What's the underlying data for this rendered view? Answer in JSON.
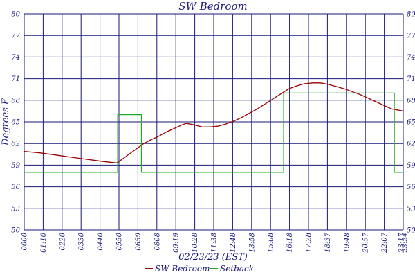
{
  "chart_data": {
    "type": "line",
    "title": "SW Bedroom",
    "xlabel": "02/23/23 (EST)",
    "ylabel": "Degrees F",
    "ylim": [
      50,
      80
    ],
    "xlim": [
      "00:00",
      "23:59"
    ],
    "y_ticks_left": [
      "50",
      "53",
      "56",
      "59",
      "62",
      "65",
      "68",
      "71",
      "74",
      "77",
      "80"
    ],
    "y_ticks_right": [
      "50",
      "53",
      "56",
      "59",
      "62",
      "65",
      "68",
      "71",
      "74",
      "77",
      "80"
    ],
    "x_ticks": [
      "0000",
      "01:10",
      "0220",
      "0330",
      "0440",
      "0550",
      "0659",
      "0808",
      "09:19",
      "10:28",
      "11:38",
      "12:48",
      "13:58",
      "15:08",
      "16:18",
      "17:28",
      "18:37",
      "19:48",
      "20:57",
      "22:07",
      "23:17",
      "23:24"
    ],
    "grid": true,
    "legend_position": "bottom-center",
    "series": [
      {
        "name": "SW Bedroom",
        "color": "#990000",
        "points": [
          [
            "00:00",
            60.9
          ],
          [
            "01:00",
            60.7
          ],
          [
            "02:00",
            60.4
          ],
          [
            "03:00",
            60.1
          ],
          [
            "04:00",
            59.8
          ],
          [
            "05:00",
            59.5
          ],
          [
            "05:50",
            59.3
          ],
          [
            "06:00",
            59.5
          ],
          [
            "06:30",
            60.3
          ],
          [
            "07:00",
            61.1
          ],
          [
            "07:30",
            61.9
          ],
          [
            "08:00",
            62.5
          ],
          [
            "08:30",
            63.0
          ],
          [
            "09:00",
            63.6
          ],
          [
            "09:30",
            64.1
          ],
          [
            "10:00",
            64.6
          ],
          [
            "10:15",
            64.8
          ],
          [
            "10:45",
            64.6
          ],
          [
            "11:15",
            64.3
          ],
          [
            "11:45",
            64.3
          ],
          [
            "12:15",
            64.4
          ],
          [
            "12:45",
            64.7
          ],
          [
            "13:15",
            65.1
          ],
          [
            "13:45",
            65.6
          ],
          [
            "14:15",
            66.2
          ],
          [
            "14:45",
            66.8
          ],
          [
            "15:15",
            67.5
          ],
          [
            "15:45",
            68.2
          ],
          [
            "16:15",
            68.9
          ],
          [
            "16:45",
            69.6
          ],
          [
            "17:15",
            70.0
          ],
          [
            "17:45",
            70.3
          ],
          [
            "18:15",
            70.4
          ],
          [
            "18:45",
            70.4
          ],
          [
            "19:15",
            70.2
          ],
          [
            "19:45",
            69.9
          ],
          [
            "20:15",
            69.6
          ],
          [
            "20:45",
            69.2
          ],
          [
            "21:15",
            68.8
          ],
          [
            "21:45",
            68.3
          ],
          [
            "22:15",
            67.8
          ],
          [
            "22:45",
            67.3
          ],
          [
            "23:15",
            66.8
          ],
          [
            "23:59",
            66.5
          ]
        ]
      },
      {
        "name": "Setback",
        "color": "#22aa22",
        "points": [
          [
            "00:00",
            58.0
          ],
          [
            "05:55",
            58.0
          ],
          [
            "05:55",
            66.0
          ],
          [
            "07:25",
            66.0
          ],
          [
            "07:25",
            58.0
          ],
          [
            "16:25",
            58.0
          ],
          [
            "16:25",
            69.0
          ],
          [
            "23:25",
            69.0
          ],
          [
            "23:25",
            58.0
          ],
          [
            "23:59",
            58.0
          ]
        ]
      }
    ]
  },
  "legend": [
    {
      "label": "SW Bedroom",
      "color": "#990000"
    },
    {
      "label": "Setback",
      "color": "#22aa22"
    }
  ]
}
